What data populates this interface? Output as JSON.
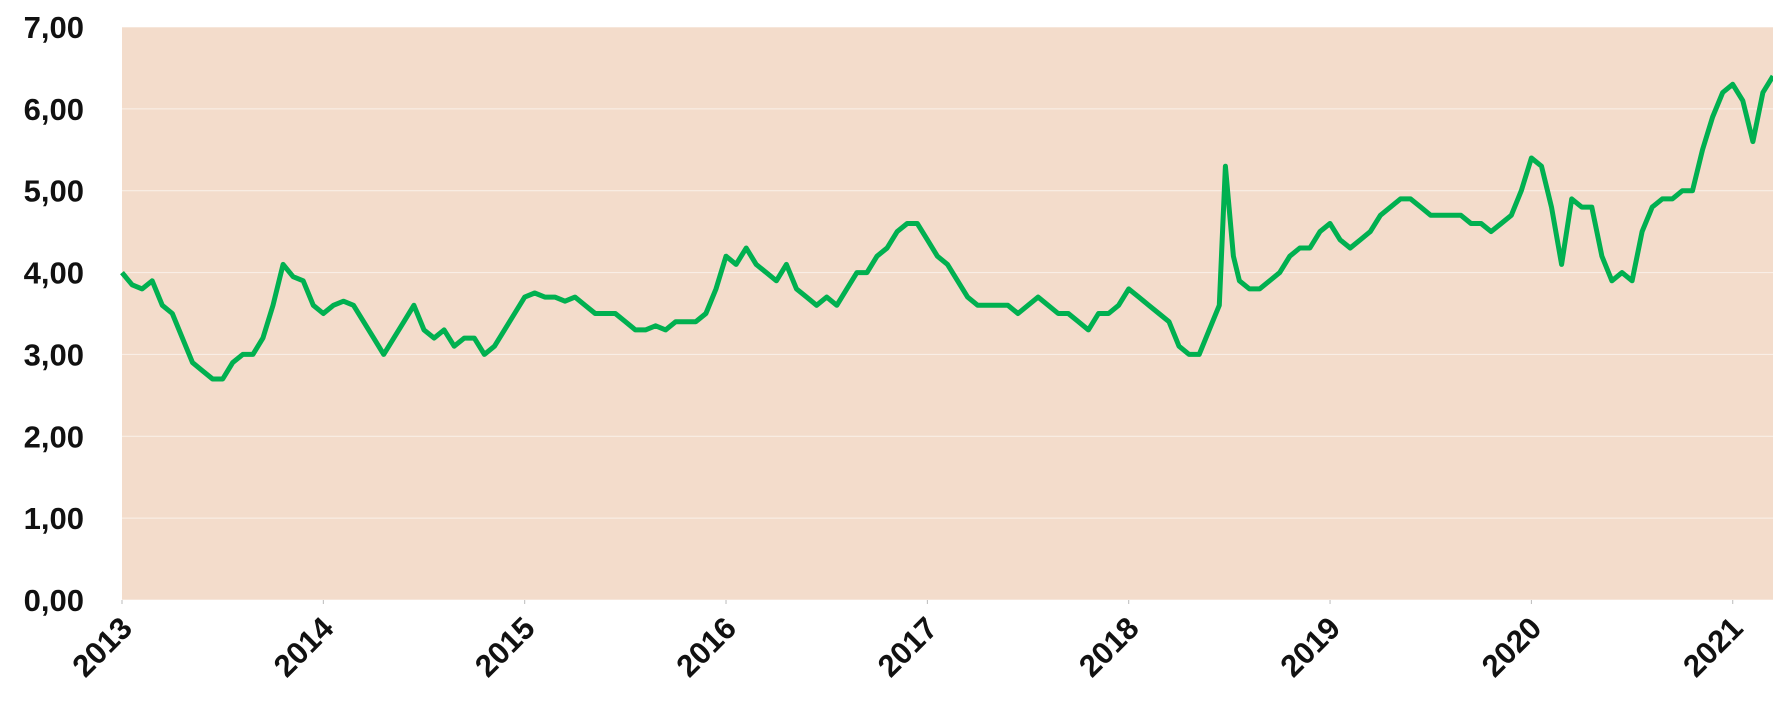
{
  "chart_data": {
    "type": "line",
    "x": [
      2013.0,
      2013.05,
      2013.1,
      2013.15,
      2013.2,
      2013.25,
      2013.3,
      2013.35,
      2013.4,
      2013.45,
      2013.5,
      2013.55,
      2013.6,
      2013.65,
      2013.7,
      2013.75,
      2013.8,
      2013.85,
      2013.9,
      2013.95,
      2014.0,
      2014.05,
      2014.1,
      2014.15,
      2014.2,
      2014.25,
      2014.3,
      2014.35,
      2014.4,
      2014.45,
      2014.5,
      2014.55,
      2014.6,
      2014.65,
      2014.7,
      2014.75,
      2014.8,
      2014.85,
      2014.9,
      2014.95,
      2015.0,
      2015.05,
      2015.1,
      2015.15,
      2015.2,
      2015.25,
      2015.3,
      2015.35,
      2015.4,
      2015.45,
      2015.5,
      2015.55,
      2015.6,
      2015.65,
      2015.7,
      2015.75,
      2015.8,
      2015.85,
      2015.9,
      2015.95,
      2016.0,
      2016.05,
      2016.1,
      2016.15,
      2016.2,
      2016.25,
      2016.3,
      2016.35,
      2016.4,
      2016.45,
      2016.5,
      2016.55,
      2016.6,
      2016.65,
      2016.7,
      2016.75,
      2016.8,
      2016.85,
      2016.9,
      2016.95,
      2017.0,
      2017.05,
      2017.1,
      2017.15,
      2017.2,
      2017.25,
      2017.3,
      2017.35,
      2017.4,
      2017.45,
      2017.5,
      2017.55,
      2017.6,
      2017.65,
      2017.7,
      2017.75,
      2017.8,
      2017.85,
      2017.9,
      2017.95,
      2018.0,
      2018.05,
      2018.1,
      2018.15,
      2018.2,
      2018.25,
      2018.3,
      2018.35,
      2018.4,
      2018.45,
      2018.48,
      2018.52,
      2018.55,
      2018.6,
      2018.65,
      2018.7,
      2018.75,
      2018.8,
      2018.85,
      2018.9,
      2018.95,
      2019.0,
      2019.05,
      2019.1,
      2019.15,
      2019.2,
      2019.25,
      2019.3,
      2019.35,
      2019.4,
      2019.45,
      2019.5,
      2019.55,
      2019.6,
      2019.65,
      2019.7,
      2019.75,
      2019.8,
      2019.85,
      2019.9,
      2019.95,
      2020.0,
      2020.05,
      2020.1,
      2020.15,
      2020.2,
      2020.25,
      2020.3,
      2020.35,
      2020.4,
      2020.45,
      2020.5,
      2020.55,
      2020.6,
      2020.65,
      2020.7,
      2020.75,
      2020.8,
      2020.85,
      2020.9,
      2020.95,
      2021.0,
      2021.05,
      2021.1,
      2021.15,
      2021.2
    ],
    "values": [
      4.0,
      3.85,
      3.8,
      3.9,
      3.6,
      3.5,
      3.2,
      2.9,
      2.8,
      2.7,
      2.7,
      2.9,
      3.0,
      3.0,
      3.2,
      3.6,
      4.1,
      3.95,
      3.9,
      3.6,
      3.5,
      3.6,
      3.65,
      3.6,
      3.4,
      3.2,
      3.0,
      3.2,
      3.4,
      3.6,
      3.3,
      3.2,
      3.3,
      3.1,
      3.2,
      3.2,
      3.0,
      3.1,
      3.3,
      3.5,
      3.7,
      3.75,
      3.7,
      3.7,
      3.65,
      3.7,
      3.6,
      3.5,
      3.5,
      3.5,
      3.4,
      3.3,
      3.3,
      3.35,
      3.3,
      3.4,
      3.4,
      3.4,
      3.5,
      3.8,
      4.2,
      4.1,
      4.3,
      4.1,
      4.0,
      3.9,
      4.1,
      3.8,
      3.7,
      3.6,
      3.7,
      3.6,
      3.8,
      4.0,
      4.0,
      4.2,
      4.3,
      4.5,
      4.6,
      4.6,
      4.4,
      4.2,
      4.1,
      3.9,
      3.7,
      3.6,
      3.6,
      3.6,
      3.6,
      3.5,
      3.6,
      3.7,
      3.6,
      3.5,
      3.5,
      3.4,
      3.3,
      3.5,
      3.5,
      3.6,
      3.8,
      3.7,
      3.6,
      3.5,
      3.4,
      3.1,
      3.0,
      3.0,
      3.3,
      3.6,
      5.3,
      4.2,
      3.9,
      3.8,
      3.8,
      3.9,
      4.0,
      4.2,
      4.3,
      4.3,
      4.5,
      4.6,
      4.4,
      4.3,
      4.4,
      4.5,
      4.7,
      4.8,
      4.9,
      4.9,
      4.8,
      4.7,
      4.7,
      4.7,
      4.7,
      4.6,
      4.6,
      4.5,
      4.6,
      4.7,
      5.0,
      5.4,
      5.3,
      4.8,
      4.1,
      4.9,
      4.8,
      4.8,
      4.2,
      3.9,
      4.0,
      3.9,
      4.5,
      4.8,
      4.9,
      4.9,
      5.0,
      5.0,
      5.5,
      5.9,
      6.2,
      6.3,
      6.1,
      5.6,
      6.2,
      6.4
    ],
    "color": "#00b050",
    "xlim": [
      2013,
      2021.2
    ],
    "xticks": [
      2013,
      2014,
      2015,
      2016,
      2017,
      2018,
      2019,
      2020,
      2021
    ],
    "ylim": [
      0,
      7
    ],
    "yticks": [
      {
        "value": 0,
        "label": "0,00"
      },
      {
        "value": 1,
        "label": "1,00"
      },
      {
        "value": 2,
        "label": "2,00"
      },
      {
        "value": 3,
        "label": "3,00"
      },
      {
        "value": 4,
        "label": "4,00"
      },
      {
        "value": 5,
        "label": "5,00"
      },
      {
        "value": 6,
        "label": "6,00"
      },
      {
        "value": 7,
        "label": "7,00"
      }
    ],
    "grid": true
  }
}
